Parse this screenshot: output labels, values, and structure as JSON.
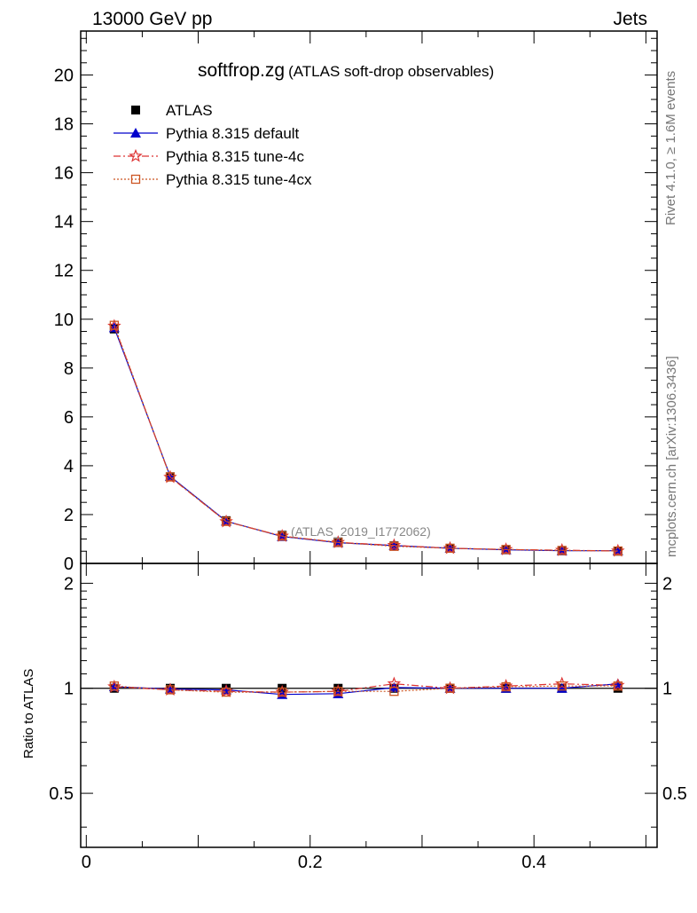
{
  "header": {
    "energy": "13000 GeV pp",
    "process": "Jets"
  },
  "side": {
    "rivet": "Rivet 4.1.0, ≥ 1.6M events",
    "mcplots": "mcplots.cern.ch [arXiv:1306.3436]"
  },
  "chart_data": {
    "type": "line",
    "title": "softfrop.zg",
    "subtitle": "(ATLAS soft-drop observables)",
    "analysis": "(ATLAS_2019_I1772062)",
    "xlabel": "",
    "ylabel": "",
    "ratio_ylabel": "Ratio to ATLAS",
    "xlim": [
      -0.005,
      0.51
    ],
    "ylim": [
      0,
      21.8
    ],
    "ratio_ylim": [
      0.35,
      2.28
    ],
    "xticks": [
      0,
      0.2,
      0.4
    ],
    "xtick_labels": [
      "0",
      "0.2",
      "0.4"
    ],
    "yticks": [
      0,
      2,
      4,
      6,
      8,
      10,
      12,
      14,
      16,
      18,
      20
    ],
    "ytick_labels": [
      "0",
      "2",
      "4",
      "6",
      "8",
      "10",
      "12",
      "14",
      "16",
      "18",
      "20"
    ],
    "ratio_yticks": [
      0.5,
      1,
      2
    ],
    "ratio_ytick_labels": [
      "0.5",
      "1",
      "2"
    ],
    "x": [
      0.025,
      0.075,
      0.125,
      0.175,
      0.225,
      0.275,
      0.325,
      0.375,
      0.425,
      0.475
    ],
    "series": [
      {
        "name": "ATLAS",
        "color": "#000000",
        "marker": "square-filled",
        "values": [
          9.6,
          3.55,
          1.75,
          1.15,
          0.88,
          0.72,
          0.62,
          0.56,
          0.52,
          0.5
        ],
        "ratio": [
          1,
          1,
          1,
          1,
          1,
          1,
          1,
          1,
          1,
          1
        ]
      },
      {
        "name": "Pythia 8.315 default",
        "color": "#0000cc",
        "marker": "triangle-filled",
        "values": [
          9.65,
          3.56,
          1.73,
          1.1,
          0.85,
          0.73,
          0.62,
          0.56,
          0.52,
          0.52
        ],
        "ratio": [
          1.01,
          0.995,
          0.99,
          0.96,
          0.965,
          1.005,
          1.0,
          1.0,
          1.0,
          1.03
        ]
      },
      {
        "name": "Pythia 8.315 tune-4c",
        "color": "#dd3333",
        "marker": "star-open",
        "values": [
          9.72,
          3.53,
          1.71,
          1.12,
          0.86,
          0.74,
          0.62,
          0.57,
          0.54,
          0.51
        ],
        "ratio": [
          1.01,
          0.99,
          0.98,
          0.975,
          0.98,
          1.03,
          1.0,
          1.015,
          1.03,
          1.02
        ]
      },
      {
        "name": "Pythia 8.315 tune-4cx",
        "color": "#cc5522",
        "marker": "square-open",
        "values": [
          9.75,
          3.54,
          1.72,
          1.12,
          0.86,
          0.7,
          0.62,
          0.57,
          0.53,
          0.51
        ],
        "ratio": [
          1.015,
          0.99,
          0.975,
          0.975,
          0.98,
          0.98,
          1.0,
          1.01,
          1.015,
          1.015
        ]
      }
    ]
  }
}
